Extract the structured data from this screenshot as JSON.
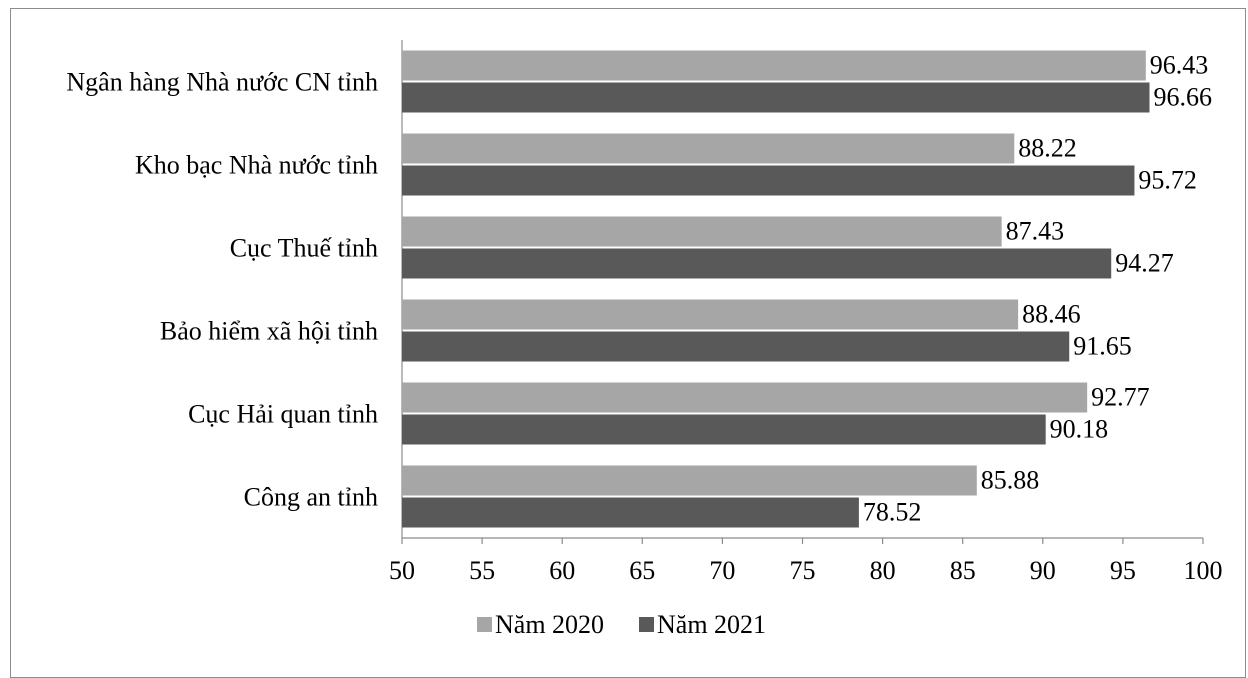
{
  "chart_data": {
    "type": "bar",
    "orientation": "horizontal",
    "title": "",
    "xlabel": "",
    "ylabel": "",
    "xlim": [
      50,
      100
    ],
    "xticks": [
      50,
      55,
      60,
      65,
      70,
      75,
      80,
      85,
      90,
      95,
      100
    ],
    "grid": false,
    "legend_position": "bottom",
    "categories": [
      "Ngân hàng Nhà nước CN tỉnh",
      "Kho bạc Nhà nước tỉnh",
      "Cục Thuế tỉnh",
      "Bảo hiểm xã hội tỉnh",
      "Cục Hải quan tỉnh",
      "Công an tỉnh"
    ],
    "series": [
      {
        "name": "Năm 2020",
        "color": "#a6a6a6",
        "values": [
          96.43,
          88.22,
          87.43,
          88.46,
          92.77,
          85.88
        ],
        "labels": [
          "96.43",
          "88.22",
          "87.43",
          "88.46",
          "92.77",
          "85.88"
        ]
      },
      {
        "name": "Năm 2021",
        "color": "#595959",
        "values": [
          96.66,
          95.72,
          94.27,
          91.65,
          90.18,
          78.52
        ],
        "labels": [
          "96.66",
          "95.72",
          "94.27",
          "91.65",
          "90.18",
          "78.52"
        ]
      }
    ]
  }
}
